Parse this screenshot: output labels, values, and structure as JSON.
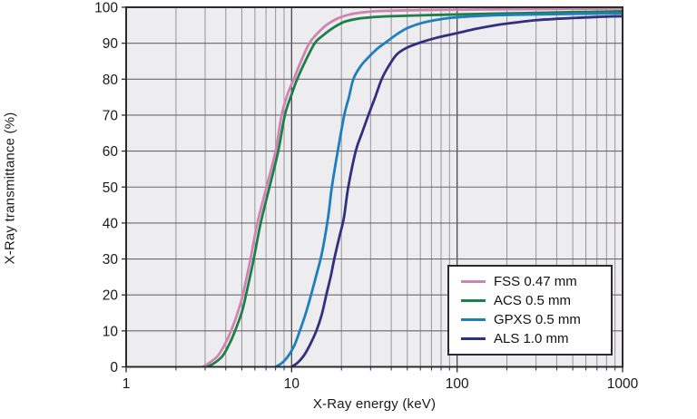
{
  "colors": {
    "plot_bg": "#edecef",
    "grid_minor": "#98949b",
    "grid_major": "#4b484c",
    "grid_horizontal": "#6b686d",
    "border": "#2d2a2e",
    "tick_text": "#1a1a1a",
    "series_fss": "#cf84b2",
    "series_acs": "#1e8048",
    "series_gpxs": "#1e7fbe",
    "series_als": "#31307f"
  },
  "chart_data": {
    "type": "line",
    "title": "",
    "xlabel": "X-Ray energy (keV)",
    "ylabel": "X-Ray transmittance (%)",
    "x_scale": "log",
    "xlim": [
      1,
      1000
    ],
    "ylim": [
      0,
      100
    ],
    "x_major_ticks": [
      1,
      10,
      100,
      1000
    ],
    "x_tick_labels": [
      "1",
      "10",
      "100",
      "1000"
    ],
    "y_ticks": [
      0,
      10,
      20,
      30,
      40,
      50,
      60,
      70,
      80,
      90,
      100
    ],
    "grid": "log minor verticals + major verticals + horizontal every 10%",
    "legend_position": "inside bottom-right",
    "series": [
      {
        "name": "FSS 0.47 mm",
        "color": "#cf84b2",
        "points": [
          [
            2.9,
            0
          ],
          [
            3.2,
            1.2
          ],
          [
            3.6,
            3.2
          ],
          [
            4.0,
            6.8
          ],
          [
            4.3,
            10
          ],
          [
            4.7,
            14.8
          ],
          [
            5.07,
            20
          ],
          [
            5.64,
            30
          ],
          [
            6.21,
            40
          ],
          [
            7.05,
            50
          ],
          [
            8.0,
            60
          ],
          [
            8.7,
            70
          ],
          [
            9.4,
            75.5
          ],
          [
            10.3,
            80
          ],
          [
            11.4,
            85
          ],
          [
            12.8,
            90
          ],
          [
            14.5,
            93
          ],
          [
            16.5,
            95.3
          ],
          [
            19,
            96.9
          ],
          [
            22,
            97.9
          ],
          [
            26,
            98.5
          ],
          [
            32,
            98.9
          ],
          [
            45,
            99.1
          ],
          [
            70,
            99.25
          ],
          [
            100,
            99.3
          ],
          [
            200,
            99.45
          ],
          [
            450,
            99.55
          ],
          [
            1000,
            99.65
          ]
        ]
      },
      {
        "name": "ACS 0.5 mm",
        "color": "#1e8048",
        "points": [
          [
            3.1,
            0
          ],
          [
            3.45,
            1.2
          ],
          [
            3.85,
            3.2
          ],
          [
            4.25,
            6.8
          ],
          [
            4.55,
            10
          ],
          [
            5.0,
            15.2
          ],
          [
            5.3,
            20
          ],
          [
            5.9,
            30
          ],
          [
            6.5,
            40
          ],
          [
            7.35,
            50
          ],
          [
            8.3,
            60
          ],
          [
            9.1,
            70
          ],
          [
            9.95,
            75.5
          ],
          [
            10.8,
            80
          ],
          [
            12.1,
            85
          ],
          [
            13.8,
            90
          ],
          [
            15.5,
            92.2
          ],
          [
            18,
            94.4
          ],
          [
            21,
            96.0
          ],
          [
            25,
            96.8
          ],
          [
            30,
            97.2
          ],
          [
            40,
            97.5
          ],
          [
            55,
            97.7
          ],
          [
            80,
            97.9
          ],
          [
            100,
            98.0
          ],
          [
            200,
            98.3
          ],
          [
            450,
            98.6
          ],
          [
            1000,
            98.9
          ]
        ]
      },
      {
        "name": "GPXS 0.5 mm",
        "color": "#1e7fbe",
        "points": [
          [
            8.0,
            0
          ],
          [
            8.8,
            1.2
          ],
          [
            9.6,
            3.2
          ],
          [
            10.4,
            6
          ],
          [
            11.2,
            10
          ],
          [
            12.1,
            14.5
          ],
          [
            13.1,
            20
          ],
          [
            14.2,
            26
          ],
          [
            15.3,
            32
          ],
          [
            16.6,
            41.5
          ],
          [
            17.5,
            50
          ],
          [
            19.0,
            60
          ],
          [
            20.8,
            70
          ],
          [
            22.2,
            75
          ],
          [
            23.6,
            80
          ],
          [
            26,
            83.5
          ],
          [
            29,
            86
          ],
          [
            33,
            88.5
          ],
          [
            36.5,
            90
          ],
          [
            43,
            92.4
          ],
          [
            50,
            94.2
          ],
          [
            62,
            95.7
          ],
          [
            80,
            96.7
          ],
          [
            100,
            97.2
          ],
          [
            140,
            97.6
          ],
          [
            200,
            97.85
          ],
          [
            350,
            98.05
          ],
          [
            600,
            98.2
          ],
          [
            1000,
            98.3
          ]
        ]
      },
      {
        "name": "ALS 1.0 mm",
        "color": "#31307f",
        "points": [
          [
            10.0,
            0
          ],
          [
            10.9,
            1.2
          ],
          [
            11.8,
            3
          ],
          [
            12.8,
            5.8
          ],
          [
            14.1,
            10
          ],
          [
            15.2,
            14.5
          ],
          [
            16.2,
            20
          ],
          [
            17.2,
            25
          ],
          [
            18.1,
            30
          ],
          [
            19.4,
            36
          ],
          [
            20.7,
            41.5
          ],
          [
            22.0,
            50
          ],
          [
            24.4,
            60
          ],
          [
            26.6,
            65
          ],
          [
            29.1,
            70
          ],
          [
            32,
            75
          ],
          [
            35,
            80
          ],
          [
            39,
            84
          ],
          [
            43.5,
            87
          ],
          [
            50,
            88.8
          ],
          [
            60,
            90.2
          ],
          [
            75,
            91.5
          ],
          [
            100,
            92.8
          ],
          [
            130,
            94
          ],
          [
            170,
            95
          ],
          [
            220,
            95.7
          ],
          [
            300,
            96.4
          ],
          [
            450,
            96.9
          ],
          [
            700,
            97.3
          ],
          [
            1000,
            97.5
          ]
        ]
      }
    ]
  }
}
